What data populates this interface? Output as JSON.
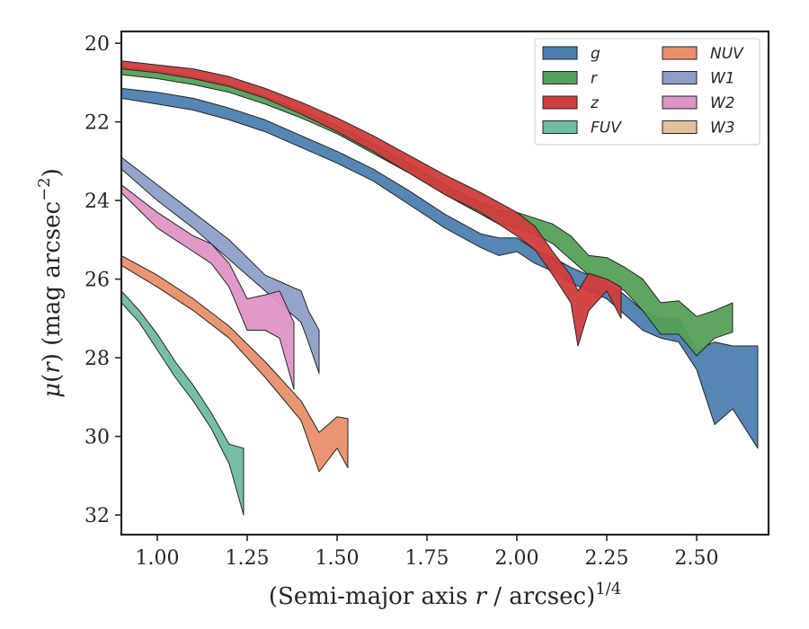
{
  "chart_data": {
    "type": "area",
    "xlabel": "(Semi-major axis r / arcsec)^1/4",
    "ylabel": "μ(r) (mag arcsec⁻²)",
    "xlim": [
      0.9,
      2.7
    ],
    "ylim": [
      32.5,
      19.7
    ],
    "y_inverted": true,
    "grid": false,
    "legend_position": "top-right",
    "xticks": [
      1.0,
      1.25,
      1.5,
      1.75,
      2.0,
      2.25,
      2.5
    ],
    "xtick_labels": [
      "1.00",
      "1.25",
      "1.50",
      "1.75",
      "2.00",
      "2.25",
      "2.50"
    ],
    "yticks": [
      20,
      22,
      24,
      26,
      28,
      30,
      32
    ],
    "ytick_labels": [
      "20",
      "22",
      "24",
      "26",
      "28",
      "30",
      "32"
    ],
    "legend": [
      {
        "label": "g"
      },
      {
        "label": "r"
      },
      {
        "label": "z"
      },
      {
        "label": "FUV"
      },
      {
        "label": "NUV"
      },
      {
        "label": "W1"
      },
      {
        "label": "W2"
      },
      {
        "label": "W3"
      }
    ],
    "series": [
      {
        "name": "g",
        "color": "#4c7fb0",
        "x": [
          0.9,
          1.0,
          1.1,
          1.2,
          1.3,
          1.4,
          1.5,
          1.6,
          1.7,
          1.8,
          1.9,
          1.95,
          2.0,
          2.05,
          2.1,
          2.15,
          2.2,
          2.25,
          2.3,
          2.35,
          2.4,
          2.45,
          2.5,
          2.55,
          2.6,
          2.67
        ],
        "lower": [
          21.15,
          21.25,
          21.4,
          21.65,
          21.95,
          22.35,
          22.75,
          23.2,
          23.75,
          24.35,
          24.85,
          24.95,
          24.95,
          25.25,
          25.45,
          25.7,
          25.9,
          26.1,
          26.4,
          26.8,
          27.0,
          27.0,
          27.8,
          27.6,
          27.7,
          27.7
        ],
        "upper": [
          21.4,
          21.55,
          21.7,
          21.95,
          22.25,
          22.65,
          23.05,
          23.5,
          24.1,
          24.7,
          25.2,
          25.4,
          25.3,
          25.6,
          25.8,
          26.1,
          26.3,
          26.5,
          26.9,
          27.3,
          27.5,
          27.6,
          28.3,
          29.7,
          29.3,
          30.3
        ]
      },
      {
        "name": "r",
        "color": "#55a05a",
        "x": [
          0.9,
          1.0,
          1.1,
          1.2,
          1.3,
          1.4,
          1.5,
          1.6,
          1.7,
          1.8,
          1.9,
          1.95,
          2.0,
          2.05,
          2.1,
          2.15,
          2.2,
          2.25,
          2.3,
          2.35,
          2.4,
          2.45,
          2.5,
          2.55,
          2.6
        ],
        "lower": [
          20.6,
          20.7,
          20.85,
          21.05,
          21.35,
          21.7,
          22.1,
          22.55,
          23.05,
          23.6,
          24.05,
          24.25,
          24.3,
          24.45,
          24.6,
          24.9,
          25.4,
          25.45,
          25.7,
          26.0,
          26.6,
          26.55,
          26.95,
          26.8,
          26.6
        ],
        "upper": [
          20.8,
          20.9,
          21.05,
          21.25,
          21.55,
          21.9,
          22.3,
          22.8,
          23.3,
          23.85,
          24.35,
          24.6,
          24.7,
          24.85,
          25.1,
          25.5,
          25.9,
          26.0,
          26.3,
          26.8,
          27.4,
          27.4,
          27.95,
          27.5,
          27.35
        ]
      },
      {
        "name": "z",
        "color": "#d03c3c",
        "x": [
          0.9,
          1.0,
          1.1,
          1.2,
          1.3,
          1.4,
          1.5,
          1.6,
          1.7,
          1.8,
          1.9,
          1.95,
          2.0,
          2.05,
          2.1,
          2.15,
          2.17,
          2.2,
          2.25,
          2.29
        ],
        "lower": [
          20.45,
          20.55,
          20.65,
          20.85,
          21.15,
          21.5,
          21.9,
          22.35,
          22.85,
          23.35,
          23.8,
          24.05,
          24.3,
          24.65,
          25.3,
          25.9,
          26.3,
          25.85,
          26.0,
          26.2
        ],
        "upper": [
          20.65,
          20.75,
          20.9,
          21.1,
          21.4,
          21.8,
          22.25,
          22.75,
          23.3,
          23.85,
          24.3,
          24.6,
          24.9,
          25.25,
          25.9,
          26.6,
          27.7,
          26.8,
          26.3,
          27.0
        ]
      },
      {
        "name": "FUV",
        "color": "#6fbc9f",
        "x": [
          0.9,
          0.95,
          1.0,
          1.05,
          1.1,
          1.15,
          1.2,
          1.24
        ],
        "lower": [
          26.3,
          26.8,
          27.4,
          28.1,
          28.7,
          29.4,
          30.2,
          30.3
        ],
        "upper": [
          26.6,
          27.1,
          27.8,
          28.5,
          29.1,
          29.8,
          30.7,
          32.0
        ]
      },
      {
        "name": "NUV",
        "color": "#e98f6a",
        "x": [
          0.9,
          1.0,
          1.1,
          1.2,
          1.3,
          1.4,
          1.45,
          1.5,
          1.53
        ],
        "lower": [
          25.4,
          25.9,
          26.5,
          27.2,
          28.1,
          29.1,
          29.9,
          29.5,
          29.55
        ],
        "upper": [
          25.65,
          26.2,
          26.8,
          27.5,
          28.5,
          29.6,
          30.9,
          30.3,
          30.8
        ]
      },
      {
        "name": "W1",
        "color": "#8e9fc7",
        "x": [
          0.9,
          1.0,
          1.1,
          1.2,
          1.3,
          1.35,
          1.4,
          1.42,
          1.45
        ],
        "lower": [
          22.9,
          23.6,
          24.3,
          25.0,
          25.9,
          26.1,
          26.3,
          26.8,
          27.3
        ],
        "upper": [
          23.2,
          24.0,
          24.7,
          25.5,
          26.3,
          26.7,
          27.1,
          27.6,
          28.4
        ]
      },
      {
        "name": "W2",
        "color": "#de94c6",
        "x": [
          0.9,
          1.0,
          1.1,
          1.15,
          1.2,
          1.25,
          1.3,
          1.34,
          1.38
        ],
        "lower": [
          23.6,
          24.3,
          24.9,
          25.1,
          25.6,
          26.5,
          26.4,
          26.3,
          27.1
        ],
        "upper": [
          23.8,
          24.7,
          25.3,
          25.6,
          26.2,
          27.3,
          27.3,
          27.5,
          28.8
        ]
      },
      {
        "name": "W3",
        "color": "#e1c29c",
        "x": [],
        "lower": [],
        "upper": []
      }
    ]
  }
}
